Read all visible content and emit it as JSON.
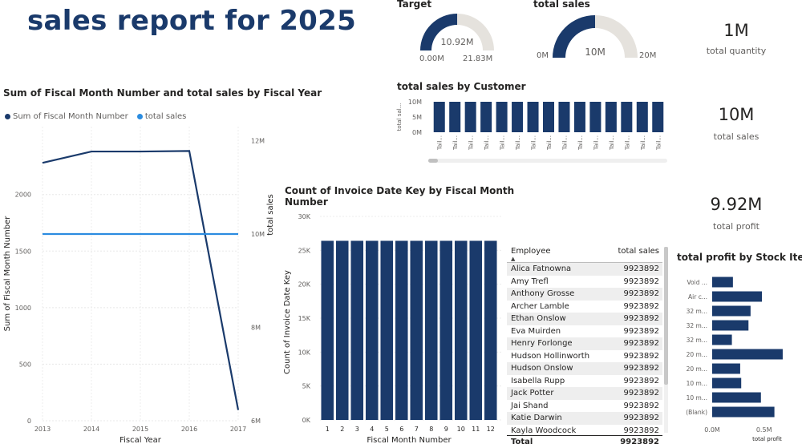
{
  "report": {
    "title": "sales report for 2025"
  },
  "colors": {
    "navy": "#1a3a6b",
    "light_blue": "#2b8ce0",
    "gauge_bg": "#e5e2dd"
  },
  "gauge_target": {
    "title": "Target",
    "value_label": "10.92M",
    "min_label": "0.00M",
    "max_label": "21.83M",
    "value": 10.92,
    "min": 0,
    "max": 21.83
  },
  "gauge_total_sales": {
    "title": "total sales",
    "value_label": "10M",
    "min_label": "0M",
    "max_label": "20M",
    "value": 10,
    "min": 0,
    "max": 20
  },
  "cards": {
    "total_quantity": {
      "value": "1M",
      "label": "total quantity"
    },
    "total_sales": {
      "value": "10M",
      "label": "total sales"
    },
    "total_profit": {
      "value": "9.92M",
      "label": "total profit"
    }
  },
  "line_chart": {
    "title": "Sum of Fiscal Month Number and total sales by Fiscal Year",
    "legend": [
      {
        "label": "Sum of Fiscal Month Number",
        "color": "#1a3a6b"
      },
      {
        "label": "total sales",
        "color": "#2b8ce0"
      }
    ]
  },
  "customer_chart": {
    "title": "total sales by Customer",
    "y_label": "total sal...",
    "x_label": "Tail..."
  },
  "invoice_chart": {
    "title_line1": "Count of Invoice Date Key by Fiscal Month",
    "title_line2": "Number"
  },
  "profit_chart": {
    "title": "total profit by Stock Item"
  },
  "employee_table": {
    "headers": {
      "employee": "Employee",
      "total_sales": "total sales"
    },
    "rows": [
      {
        "name": "Alica Fatnowna",
        "value": "9923892"
      },
      {
        "name": "Amy Trefl",
        "value": "9923892"
      },
      {
        "name": "Anthony Grosse",
        "value": "9923892"
      },
      {
        "name": "Archer Lamble",
        "value": "9923892"
      },
      {
        "name": "Ethan Onslow",
        "value": "9923892"
      },
      {
        "name": "Eva Muirden",
        "value": "9923892"
      },
      {
        "name": "Henry Forlonge",
        "value": "9923892"
      },
      {
        "name": "Hudson Hollinworth",
        "value": "9923892"
      },
      {
        "name": "Hudson Onslow",
        "value": "9923892"
      },
      {
        "name": "Isabella Rupp",
        "value": "9923892"
      },
      {
        "name": "Jack Potter",
        "value": "9923892"
      },
      {
        "name": "Jai Shand",
        "value": "9923892"
      },
      {
        "name": "Katie Darwin",
        "value": "9923892"
      },
      {
        "name": "Kayla Woodcock",
        "value": "9923892"
      }
    ],
    "total_label": "Total",
    "total_value": "9923892"
  },
  "chart_data": [
    {
      "type": "line",
      "title": "Sum of Fiscal Month Number and total sales by Fiscal Year",
      "xlabel": "Fiscal Year",
      "ylabel": "Sum of Fiscal Month Number",
      "y2label": "total sales",
      "x": [
        "2013",
        "2014",
        "2015",
        "2016",
        "2017"
      ],
      "series": [
        {
          "name": "Sum of Fiscal Month Number",
          "axis": "left",
          "values": [
            2280,
            2380,
            2380,
            2385,
            95
          ]
        },
        {
          "name": "total sales",
          "axis": "right",
          "values": [
            10.0,
            10.0,
            10.0,
            10.0,
            10.0
          ]
        }
      ],
      "ylim": [
        0,
        2600
      ],
      "yticks": [
        "0",
        "500",
        "1000",
        "1500",
        "2000"
      ],
      "y2lim": [
        6,
        12.3
      ],
      "y2ticks": [
        "6M",
        "8M",
        "10M",
        "12M"
      ],
      "grid": true,
      "legend": "top-left"
    },
    {
      "type": "bar",
      "title": "total sales by Customer",
      "ylabel": "total sal...",
      "categories": [
        "Tail...",
        "Tail...",
        "Tail...",
        "Tail...",
        "Tail...",
        "Tail...",
        "Tail...",
        "Tail...",
        "Tail...",
        "Tail...",
        "Tail...",
        "Tail...",
        "Tail...",
        "Tail...",
        "Tail..."
      ],
      "values": [
        10,
        10,
        10,
        10,
        10,
        10,
        10,
        10,
        10,
        10,
        10,
        10,
        10,
        10,
        10
      ],
      "ylim": [
        0,
        10
      ],
      "yticks": [
        "0M",
        "5M",
        "10M"
      ]
    },
    {
      "type": "bar",
      "title": "Count of Invoice Date Key by Fiscal Month Number",
      "xlabel": "Fiscal Month Number",
      "ylabel": "Count of Invoice Date Key",
      "categories": [
        "1",
        "2",
        "3",
        "4",
        "5",
        "6",
        "7",
        "8",
        "9",
        "10",
        "11",
        "12"
      ],
      "values": [
        26400,
        26400,
        26400,
        26400,
        26400,
        26400,
        26400,
        26400,
        26400,
        26400,
        26400,
        26400
      ],
      "ylim": [
        0,
        30000
      ],
      "yticks": [
        "0K",
        "5K",
        "10K",
        "15K",
        "20K",
        "25K",
        "30K"
      ]
    },
    {
      "type": "bar",
      "orientation": "horizontal",
      "title": "total profit by Stock Item",
      "xlabel": "total profit",
      "categories": [
        "Void ...",
        "Air c...",
        "32 m...",
        "32 m...",
        "32 m...",
        "20 m...",
        "20 m...",
        "10 m...",
        "10 m...",
        "(Blank)"
      ],
      "values": [
        0.2,
        0.48,
        0.37,
        0.35,
        0.19,
        0.68,
        0.27,
        0.28,
        0.47,
        0.6
      ],
      "xlim": [
        0,
        0.75
      ],
      "xticks": [
        "0.0M",
        "0.5M"
      ]
    }
  ]
}
